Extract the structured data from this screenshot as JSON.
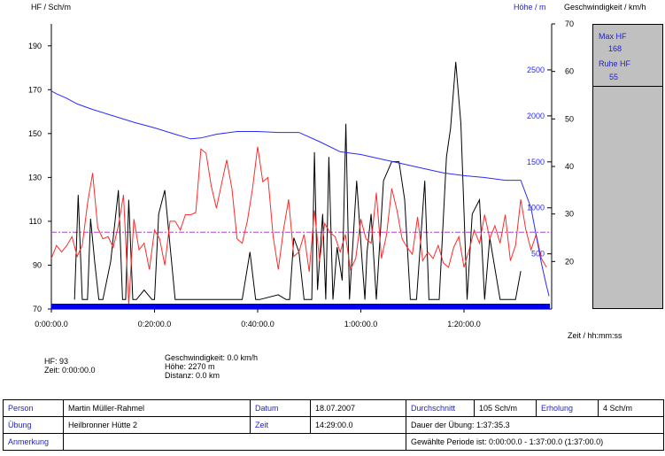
{
  "axes": {
    "left_title": "HF / Sch/m",
    "height_title": "Höhe / m",
    "speed_title": "Geschwindigkeit / km/h",
    "x_title": "Zeit / hh:mm:ss"
  },
  "side_panel": {
    "max_label": "Max HF",
    "max_value": "168",
    "rest_label": "Ruhe HF",
    "rest_value": "55"
  },
  "cursor_info": {
    "hf": "HF: 93",
    "zeit": "Zeit: 0:00:00.0",
    "speed": "Geschwindigkeit: 0.0 km/h",
    "height": "Höhe: 2270 m",
    "distance": "Distanz: 0.0 km"
  },
  "info_table": {
    "person_label": "Person",
    "person_value": "Martin Müller-Rahmel",
    "datum_label": "Datum",
    "datum_value": "18.07.2007",
    "avg_label": "Durchschnitt",
    "avg_value": "105 Sch/m",
    "rec_label": "Erholung",
    "rec_value": "4 Sch/m",
    "ubung_label": "Übung",
    "ubung_value": "Heilbronner Hütte 2",
    "zeit_label": "Zeit",
    "zeit_value": "14:29:00.0",
    "duration": "Dauer der Übung: 1:37:35.3",
    "note_label": "Anmerkung",
    "note_value": "",
    "period": "Gewählte Periode ist: 0:00:00.0 - 1:37:00.0 (1:37:00.0)"
  },
  "colors": {
    "hr": "#ff2a2a",
    "altitude": "#2a2aff",
    "speed": "#000000",
    "avg_line": "#aa44cc",
    "bottom_bar": "#0000ee"
  },
  "chart_data": {
    "type": "line",
    "x_unit": "minutes",
    "x_ticks": [
      "0:00:00.0",
      "0:20:00.0",
      "0:40:00.0",
      "1:00:00.0",
      "1:20:00.0"
    ],
    "x_tick_minutes": [
      0,
      20,
      40,
      60,
      80
    ],
    "xlim": [
      0,
      97
    ],
    "y_left": {
      "ticks": [
        70,
        90,
        110,
        130,
        150,
        170,
        190
      ],
      "ylim": [
        70,
        200
      ]
    },
    "y_height": {
      "ticks": [
        500,
        1000,
        1500,
        2000,
        2500
      ],
      "ylim": [
        -100,
        3000
      ]
    },
    "y_speed": {
      "ticks": [
        20,
        30,
        40,
        50,
        60,
        70
      ],
      "ylim": [
        10,
        70
      ]
    },
    "average_hr": 105,
    "series": [
      {
        "key": "altitude",
        "axis": "height",
        "x": [
          0,
          1,
          3,
          5,
          8,
          12,
          16,
          20,
          24,
          27,
          29,
          32,
          36,
          40,
          44,
          48,
          52,
          56,
          60,
          64,
          68,
          72,
          76,
          80,
          84,
          88,
          91,
          93,
          95,
          96,
          96.5
        ],
        "y": [
          2270,
          2240,
          2190,
          2130,
          2070,
          2000,
          1930,
          1870,
          1800,
          1750,
          1760,
          1800,
          1830,
          1830,
          1820,
          1820,
          1720,
          1610,
          1580,
          1530,
          1480,
          1430,
          1380,
          1350,
          1330,
          1300,
          1300,
          1000,
          400,
          150,
          40
        ]
      },
      {
        "key": "hr",
        "axis": "left",
        "x": [
          0,
          1,
          2,
          3,
          4,
          5,
          6,
          7,
          8,
          9,
          10,
          11,
          12,
          13,
          14,
          15,
          16,
          17,
          18,
          19,
          20,
          21,
          22,
          23,
          24,
          25,
          26,
          27,
          28,
          29,
          30,
          31,
          32,
          33,
          34,
          35,
          36,
          37,
          38,
          39,
          40,
          41,
          42,
          43,
          44,
          45,
          46,
          47,
          48,
          49,
          50,
          51,
          52,
          53,
          54,
          55,
          56,
          57,
          58,
          59,
          60,
          61,
          62,
          63,
          64,
          65,
          66,
          67,
          68,
          69,
          70,
          71,
          72,
          73,
          74,
          75,
          76,
          77,
          78,
          79,
          80,
          81,
          82,
          83,
          84,
          85,
          86,
          87,
          88,
          89,
          90,
          91,
          92,
          93,
          94,
          95,
          96
        ],
        "y": [
          93,
          99,
          96,
          99,
          103,
          94,
          99,
          118,
          132,
          107,
          102,
          103,
          98,
          108,
          122,
          72,
          111,
          97,
          100,
          88,
          106,
          102,
          90,
          110,
          110,
          106,
          113,
          113,
          114,
          143,
          141,
          126,
          116,
          127,
          138,
          125,
          102,
          100,
          110,
          125,
          144,
          128,
          130,
          103,
          88,
          106,
          120,
          94,
          96,
          104,
          87,
          115,
          92,
          109,
          105,
          103,
          96,
          104,
          88,
          93,
          111,
          102,
          100,
          123,
          93,
          104,
          125,
          115,
          102,
          98,
          95,
          112,
          92,
          96,
          93,
          99,
          91,
          89,
          98,
          103,
          89,
          97,
          106,
          100,
          113,
          102,
          108,
          100,
          113,
          92,
          99,
          120,
          106,
          97,
          104,
          93,
          89
        ]
      },
      {
        "key": "speed",
        "axis": "speed",
        "x": [
          4.5,
          5.2,
          6,
          7,
          7.6,
          8.4,
          9.2,
          10,
          11.5,
          13,
          13.8,
          14.4,
          15,
          15.8,
          16.5,
          18,
          19.5,
          20,
          20.8,
          22,
          24,
          25.2,
          26.5,
          27.4,
          33,
          35,
          36,
          37,
          38.5,
          39.6,
          40.4,
          44,
          45.5,
          46.2,
          47,
          48,
          49,
          50.5,
          51,
          51.6,
          52.6,
          53.2,
          53.8,
          54.6,
          55.4,
          56.4,
          57.1,
          57.8,
          59.2,
          60.2,
          60.8,
          61.2,
          62,
          63,
          64.4,
          66,
          67.4,
          68.5,
          69.6,
          70.8,
          72.4,
          73.2,
          74.3,
          75.2,
          76.6,
          77.4,
          78.4,
          79.4,
          80.6,
          81.6,
          83,
          84,
          85,
          87,
          88,
          90,
          91
        ],
        "y": [
          12,
          34,
          12,
          12,
          29,
          20,
          12,
          12,
          20,
          35,
          12,
          12,
          33,
          12,
          12,
          14,
          12,
          12,
          30,
          35,
          12,
          12,
          12,
          12,
          12,
          12,
          12,
          12,
          22,
          12,
          12,
          13,
          12,
          12,
          25,
          22,
          12,
          12,
          43,
          14,
          30,
          12,
          42,
          12,
          23,
          16,
          49,
          12,
          37,
          21,
          12,
          22,
          30,
          12,
          37,
          41,
          41,
          33,
          12,
          12,
          37,
          12,
          12,
          12,
          42,
          48,
          62,
          49,
          12,
          30,
          33,
          12,
          25,
          12,
          12,
          12,
          18
        ]
      }
    ]
  }
}
